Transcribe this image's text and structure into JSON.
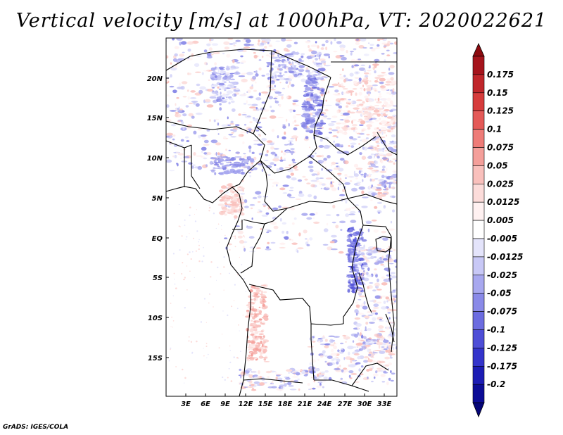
{
  "title": "Vertical velocity [m/s] at 1000hPa, VT: 2020022621",
  "footer": "GrADS: IGES/COLA",
  "map": {
    "lat_labels": [
      "20N",
      "15N",
      "10N",
      "5N",
      "EQ",
      "5S",
      "10S",
      "15S"
    ],
    "lon_labels": [
      "3E",
      "6E",
      "9E",
      "12E",
      "15E",
      "18E",
      "21E",
      "24E",
      "27E",
      "30E",
      "33E"
    ]
  },
  "colorbar": {
    "labels": [
      "0.175",
      "0.15",
      "0.125",
      "0.1",
      "0.075",
      "0.05",
      "0.025",
      "0.0125",
      "0.005",
      "-0.005",
      "-0.0125",
      "-0.025",
      "-0.05",
      "-0.075",
      "-0.1",
      "-0.125",
      "-0.175",
      "-0.2"
    ],
    "colors": [
      "#a5141c",
      "#c0262b",
      "#d63c3c",
      "#e45a58",
      "#ee7c78",
      "#f49f9a",
      "#f9c0bc",
      "#fcdcda",
      "#fff1f1",
      "#ffffff",
      "#e4e4fb",
      "#c8c8f6",
      "#a8a8ef",
      "#8a8ae8",
      "#6c6ce0",
      "#4e4ed7",
      "#3434cb",
      "#1c1cb4",
      "#0c0c96"
    ],
    "top_arrow_color": "#8c0a0f",
    "bottom_arrow_color": "#050578"
  }
}
